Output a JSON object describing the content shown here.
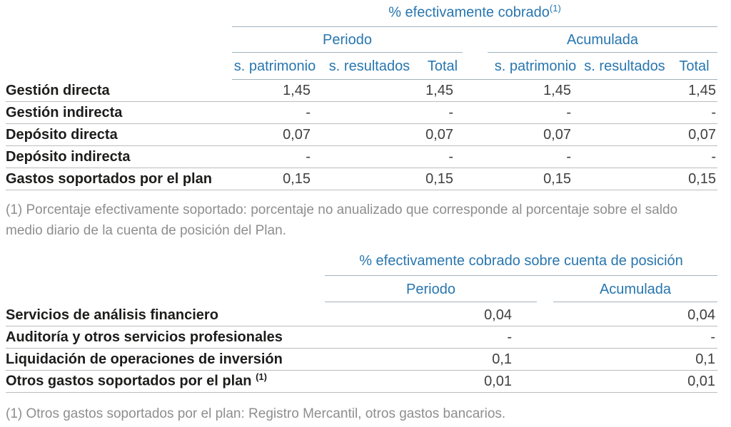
{
  "colors": {
    "accent_blue": "#2876af",
    "label_black": "#1c1c1b",
    "value_gray": "#3f3f3f",
    "footnote_gray": "#8e8e8e",
    "rule_light": "#bcbcbc",
    "rule_header": "#a3b1bc"
  },
  "table1": {
    "title": "% efectivamente cobrado",
    "title_sup": "(1)",
    "groups": [
      "Periodo",
      "Acumulada"
    ],
    "columns": [
      "s. patrimonio",
      "s. resultados",
      "Total",
      "s. patrimonio",
      "s. resultados",
      "Total"
    ],
    "rows": [
      {
        "label": "Gestión directa",
        "values": [
          "1,45",
          "",
          "1,45",
          "1,45",
          "",
          "1,45"
        ]
      },
      {
        "label": "Gestión indirecta",
        "values": [
          "-",
          "",
          "-",
          "-",
          "",
          "-"
        ]
      },
      {
        "label": "Depósito directa",
        "values": [
          "0,07",
          "",
          "0,07",
          "0,07",
          "",
          "0,07"
        ]
      },
      {
        "label": "Depósito indirecta",
        "values": [
          "-",
          "",
          "-",
          "-",
          "",
          "-"
        ]
      },
      {
        "label": "Gastos soportados por el plan",
        "values": [
          "0,15",
          "",
          "0,15",
          "0,15",
          "",
          "0,15"
        ]
      }
    ],
    "footnote": "(1) Porcentaje efectivamente soportado: porcentaje no anualizado que corresponde al porcentaje sobre el saldo medio diario de la cuenta de posición del Plan."
  },
  "table2": {
    "title": "% efectivamente cobrado sobre cuenta de posición",
    "columns": [
      "Periodo",
      "Acumulada"
    ],
    "rows": [
      {
        "label": "Servicios de análisis financiero",
        "label_sup": "",
        "values": [
          "0,04",
          "0,04"
        ]
      },
      {
        "label": "Auditoría y otros servicios profesionales",
        "label_sup": "",
        "values": [
          "-",
          "-"
        ]
      },
      {
        "label": "Liquidación de operaciones de inversión",
        "label_sup": "",
        "values": [
          "0,1",
          "0,1"
        ]
      },
      {
        "label": "Otros gastos soportados por el plan ",
        "label_sup": "(1)",
        "values": [
          "0,01",
          "0,01"
        ]
      }
    ],
    "footnote": "(1) Otros gastos soportados por el plan: Registro Mercantil, otros gastos bancarios."
  }
}
